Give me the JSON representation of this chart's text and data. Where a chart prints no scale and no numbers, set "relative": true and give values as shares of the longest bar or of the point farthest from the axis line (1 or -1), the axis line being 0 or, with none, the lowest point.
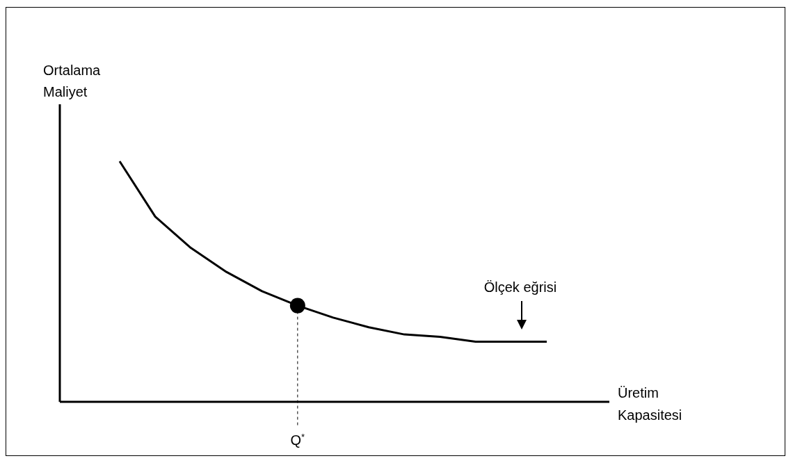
{
  "chart_data": {
    "type": "line",
    "relative": true,
    "ylabel": "Ortalama Maliyet",
    "xlabel": "Üretim Kapasitesi",
    "categories": [
      null,
      null,
      null,
      null,
      null,
      null,
      null,
      null,
      null,
      null,
      null,
      null,
      null
    ],
    "series": [
      {
        "color": "#000000",
        "values": [
          1,
          0.77,
          0.64,
          0.54,
          0.46,
          0.4,
          0.35,
          0.31,
          0.28,
          0.27,
          0.25,
          0.25,
          0.25
        ]
      }
    ],
    "annotations": [
      "Ölçek eğrisi",
      {
        "text": "Q$^{*}$",
        "y": 0.4
      }
    ]
  }
}
